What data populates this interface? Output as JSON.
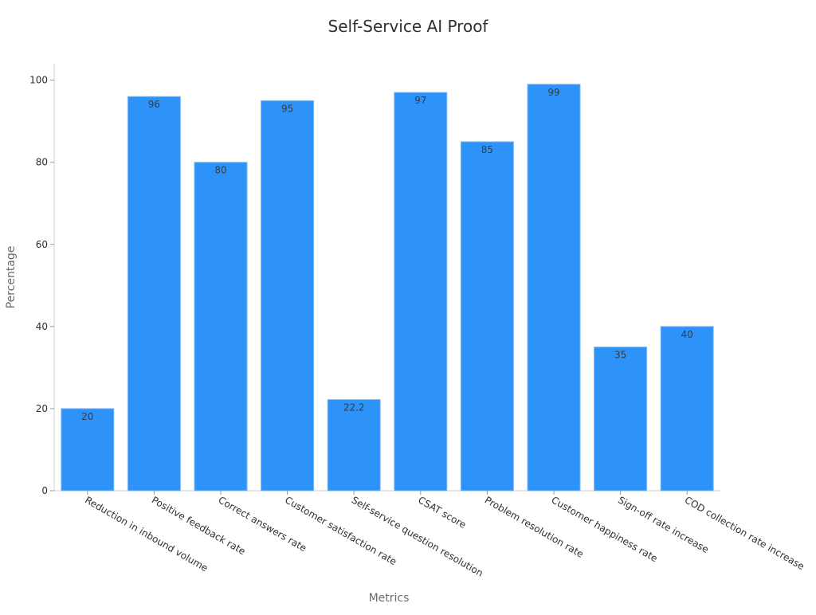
{
  "chart_data": {
    "type": "bar",
    "title": "Self-Service AI Proof",
    "xlabel": "Metrics",
    "ylabel": "Percentage",
    "categories": [
      "Reduction in inbound volume",
      "Positive feedback rate",
      "Correct answers rate",
      "Customer satisfaction rate",
      "Self-service question resolution",
      "CSAT score",
      "Problem resolution rate",
      "Customer happiness rate",
      "Sign-off rate increase",
      "COD collection rate increase"
    ],
    "values": [
      20,
      96,
      80,
      95,
      22.2,
      97,
      85,
      99,
      35,
      40
    ],
    "ylim": [
      0,
      104
    ],
    "yticks": [
      0,
      20,
      40,
      60,
      80,
      100
    ],
    "grid": false,
    "legend": "none",
    "bar_color": "#2e93f9"
  }
}
